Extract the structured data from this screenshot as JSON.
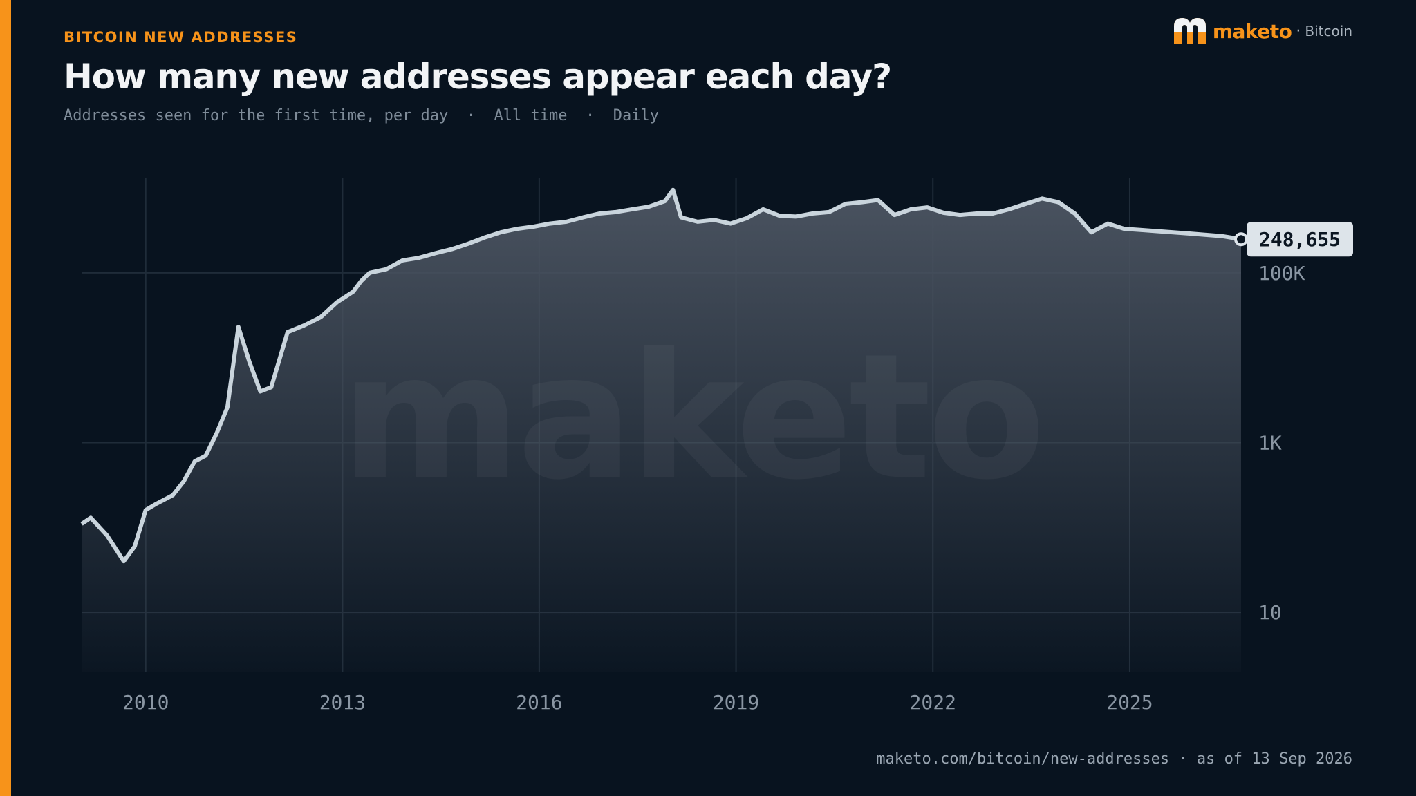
{
  "eyebrow": "BITCOIN NEW ADDRESSES",
  "title": "How many new addresses appear each day?",
  "subtitle": "Addresses seen for the first time, per day  ·  All time  ·  Daily",
  "brand": {
    "name": "maketo",
    "separator": "·",
    "product": "Bitcoin",
    "watermark": "maketo"
  },
  "footer": "maketo.com/bitcoin/new-addresses · as of 13 Sep 2026",
  "colors": {
    "accent": "#f7931a",
    "background": "#08131f",
    "line": "#c9d4dc",
    "callout_bg": "#dde4ea"
  },
  "chart_data": {
    "type": "area",
    "title": "How many new addresses appear each day?",
    "xlabel": "",
    "ylabel": "",
    "y_scale": "log",
    "ylim": [
      2,
      1300000
    ],
    "xlim": [
      "2009-01-09",
      "2026-09-13"
    ],
    "x_ticks": [
      "2010",
      "2013",
      "2016",
      "2019",
      "2022",
      "2025"
    ],
    "y_ticks": [
      {
        "value": 10,
        "label": "10"
      },
      {
        "value": 1000,
        "label": "1K"
      },
      {
        "value": 100000,
        "label": "100K"
      }
    ],
    "grid": true,
    "last_value": {
      "date": "2026-09-13",
      "value": 248655,
      "label": "248,655"
    },
    "series": [
      {
        "x": [
          "2009-01-09",
          "2009-03-01",
          "2009-06-01",
          "2009-09-01",
          "2009-11-01",
          "2010-01-01",
          "2010-03-01",
          "2010-06-01",
          "2010-08-01",
          "2010-10-01",
          "2010-12-01",
          "2011-02-01",
          "2011-04-01",
          "2011-06-01",
          "2011-08-01",
          "2011-10-01",
          "2011-12-01",
          "2012-03-01",
          "2012-06-01",
          "2012-09-01",
          "2012-12-01",
          "2013-03-01",
          "2013-04-15",
          "2013-06-01",
          "2013-09-01",
          "2013-12-01",
          "2014-03-01",
          "2014-06-01",
          "2014-09-01",
          "2014-12-01",
          "2015-03-01",
          "2015-06-01",
          "2015-09-01",
          "2015-12-01",
          "2016-03-01",
          "2016-06-01",
          "2016-09-01",
          "2016-12-01",
          "2017-03-01",
          "2017-06-01",
          "2017-09-01",
          "2017-12-01",
          "2018-01-15",
          "2018-03-01",
          "2018-06-01",
          "2018-09-01",
          "2018-12-01",
          "2019-03-01",
          "2019-06-01",
          "2019-09-01",
          "2019-12-01",
          "2020-03-01",
          "2020-06-01",
          "2020-09-01",
          "2020-12-01",
          "2021-03-01",
          "2021-06-01",
          "2021-09-01",
          "2021-12-01",
          "2022-03-01",
          "2022-06-01",
          "2022-09-01",
          "2022-12-01",
          "2023-03-01",
          "2023-06-01",
          "2023-09-01",
          "2023-12-01",
          "2024-03-01",
          "2024-06-01",
          "2024-09-01",
          "2024-12-01",
          "2025-03-01",
          "2025-06-01",
          "2025-09-01",
          "2025-12-01",
          "2026-03-01",
          "2026-06-01",
          "2026-09-13"
        ],
        "values": [
          110,
          130,
          80,
          40,
          60,
          160,
          190,
          240,
          350,
          600,
          700,
          1300,
          2600,
          23000,
          9000,
          4000,
          4500,
          20000,
          24000,
          30000,
          45000,
          60000,
          80000,
          100000,
          110000,
          140000,
          150000,
          170000,
          190000,
          220000,
          260000,
          300000,
          330000,
          350000,
          380000,
          400000,
          450000,
          500000,
          520000,
          560000,
          600000,
          700000,
          950000,
          450000,
          400000,
          420000,
          380000,
          440000,
          560000,
          470000,
          460000,
          500000,
          520000,
          650000,
          680000,
          720000,
          480000,
          560000,
          590000,
          510000,
          480000,
          500000,
          500000,
          560000,
          650000,
          750000,
          680000,
          500000,
          300000,
          380000,
          330000,
          320000,
          310000,
          300000,
          290000,
          280000,
          270000,
          248655
        ]
      }
    ]
  }
}
